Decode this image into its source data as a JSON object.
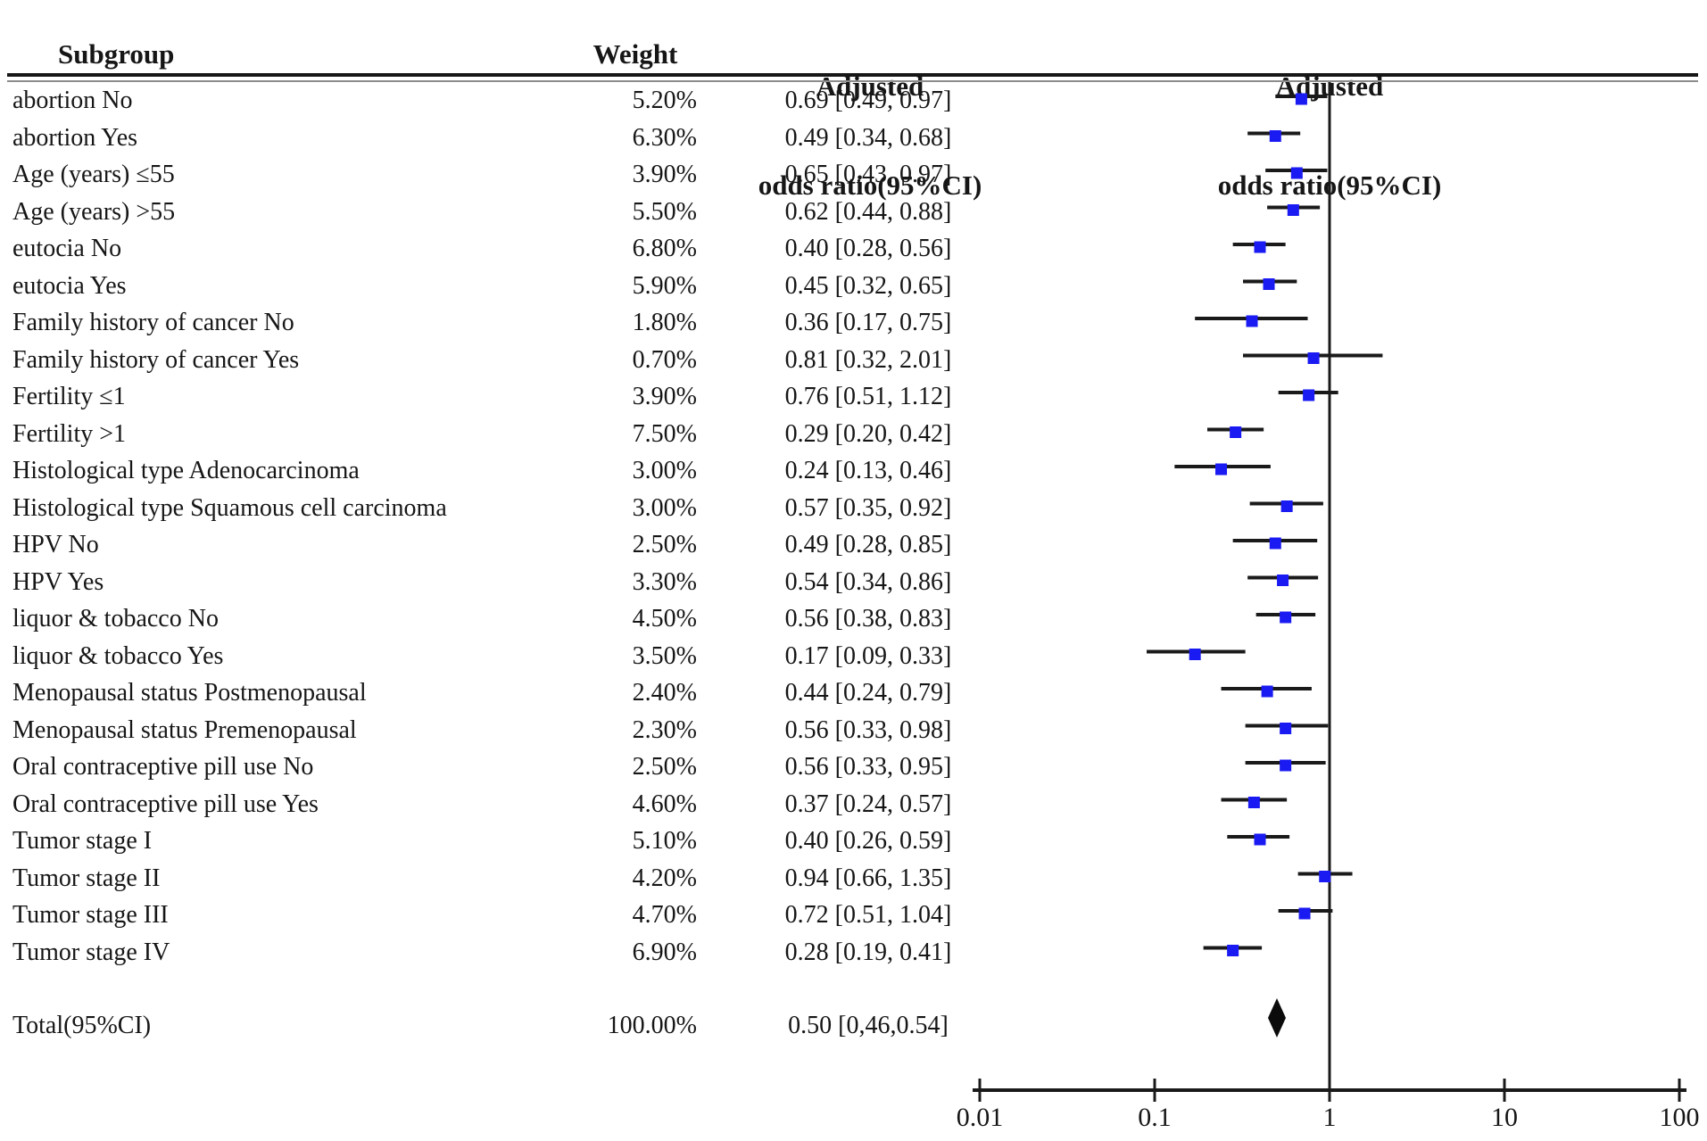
{
  "headers": {
    "subgroup": "Subgroup",
    "weight": "Weight",
    "or_col_line1": "Adjusted",
    "or_col_line2": "odds ratio(95%CI)",
    "plot_col_line1": "Adjusted",
    "plot_col_line2": "odds ratio(95%CI)"
  },
  "chart_data": {
    "type": "forest",
    "x_scale": "log10",
    "x_axis": {
      "ticks": [
        0.01,
        0.1,
        1,
        10,
        100
      ],
      "tick_labels": [
        "0.01",
        "0.1",
        "1",
        "10",
        "100"
      ],
      "reference_line": 1,
      "xlim": [
        0.01,
        100
      ]
    },
    "columns": [
      "Subgroup",
      "Weight",
      "Adjusted odds ratio(95%CI)"
    ],
    "marker_color": "#1a1af2",
    "line_color": "#1a1a1a",
    "rows": [
      {
        "subgroup": "abortion No",
        "weight": "5.20%",
        "or_text": "0.69 [0.49, 0.97]",
        "or": 0.69,
        "lo": 0.49,
        "hi": 0.97
      },
      {
        "subgroup": "abortion Yes",
        "weight": "6.30%",
        "or_text": "0.49 [0.34, 0.68]",
        "or": 0.49,
        "lo": 0.34,
        "hi": 0.68
      },
      {
        "subgroup": "Age (years) ≤55",
        "weight": "3.90%",
        "or_text": "0.65 [0.43, 0.97]",
        "or": 0.65,
        "lo": 0.43,
        "hi": 0.97
      },
      {
        "subgroup": "Age (years) >55",
        "weight": "5.50%",
        "or_text": "0.62 [0.44, 0.88]",
        "or": 0.62,
        "lo": 0.44,
        "hi": 0.88
      },
      {
        "subgroup": "eutocia No",
        "weight": "6.80%",
        "or_text": "0.40 [0.28, 0.56]",
        "or": 0.4,
        "lo": 0.28,
        "hi": 0.56
      },
      {
        "subgroup": "eutocia Yes",
        "weight": "5.90%",
        "or_text": "0.45 [0.32, 0.65]",
        "or": 0.45,
        "lo": 0.32,
        "hi": 0.65
      },
      {
        "subgroup": "Family history of cancer No",
        "weight": "1.80%",
        "or_text": "0.36 [0.17, 0.75]",
        "or": 0.36,
        "lo": 0.17,
        "hi": 0.75
      },
      {
        "subgroup": "Family history of cancer Yes",
        "weight": "0.70%",
        "or_text": "0.81 [0.32, 2.01]",
        "or": 0.81,
        "lo": 0.32,
        "hi": 2.01
      },
      {
        "subgroup": "Fertility ≤1",
        "weight": "3.90%",
        "or_text": "0.76 [0.51, 1.12]",
        "or": 0.76,
        "lo": 0.51,
        "hi": 1.12
      },
      {
        "subgroup": "Fertility >1",
        "weight": "7.50%",
        "or_text": "0.29 [0.20, 0.42]",
        "or": 0.29,
        "lo": 0.2,
        "hi": 0.42
      },
      {
        "subgroup": "Histological type Adenocarcinoma",
        "weight": "3.00%",
        "or_text": "0.24 [0.13, 0.46]",
        "or": 0.24,
        "lo": 0.13,
        "hi": 0.46
      },
      {
        "subgroup": "Histological type Squamous cell carcinoma",
        "weight": "3.00%",
        "or_text": "0.57 [0.35, 0.92]",
        "or": 0.57,
        "lo": 0.35,
        "hi": 0.92
      },
      {
        "subgroup": "HPV No",
        "weight": "2.50%",
        "or_text": "0.49 [0.28, 0.85]",
        "or": 0.49,
        "lo": 0.28,
        "hi": 0.85
      },
      {
        "subgroup": "HPV Yes",
        "weight": "3.30%",
        "or_text": "0.54 [0.34, 0.86]",
        "or": 0.54,
        "lo": 0.34,
        "hi": 0.86
      },
      {
        "subgroup": "liquor & tobacco No",
        "weight": "4.50%",
        "or_text": "0.56 [0.38, 0.83]",
        "or": 0.56,
        "lo": 0.38,
        "hi": 0.83
      },
      {
        "subgroup": "liquor & tobacco Yes",
        "weight": "3.50%",
        "or_text": "0.17 [0.09, 0.33]",
        "or": 0.17,
        "lo": 0.09,
        "hi": 0.33
      },
      {
        "subgroup": "Menopausal status Postmenopausal",
        "weight": "2.40%",
        "or_text": "0.44 [0.24, 0.79]",
        "or": 0.44,
        "lo": 0.24,
        "hi": 0.79
      },
      {
        "subgroup": "Menopausal status Premenopausal",
        "weight": "2.30%",
        "or_text": "0.56 [0.33, 0.98]",
        "or": 0.56,
        "lo": 0.33,
        "hi": 0.98
      },
      {
        "subgroup": "Oral contraceptive pill use No",
        "weight": "2.50%",
        "or_text": "0.56 [0.33, 0.95]",
        "or": 0.56,
        "lo": 0.33,
        "hi": 0.95
      },
      {
        "subgroup": "Oral contraceptive pill use Yes",
        "weight": "4.60%",
        "or_text": "0.37 [0.24, 0.57]",
        "or": 0.37,
        "lo": 0.24,
        "hi": 0.57
      },
      {
        "subgroup": "Tumor stage I",
        "weight": "5.10%",
        "or_text": "0.40 [0.26, 0.59]",
        "or": 0.4,
        "lo": 0.26,
        "hi": 0.59
      },
      {
        "subgroup": "Tumor stage II",
        "weight": "4.20%",
        "or_text": "0.94 [0.66, 1.35]",
        "or": 0.94,
        "lo": 0.66,
        "hi": 1.35
      },
      {
        "subgroup": "Tumor stage III",
        "weight": "4.70%",
        "or_text": "0.72 [0.51, 1.04]",
        "or": 0.72,
        "lo": 0.51,
        "hi": 1.04
      },
      {
        "subgroup": "Tumor stage IV",
        "weight": "6.90%",
        "or_text": "0.28 [0.19, 0.41]",
        "or": 0.28,
        "lo": 0.19,
        "hi": 0.41
      }
    ],
    "total": {
      "subgroup": "Total(95%CI)",
      "weight": "100.00%",
      "or_text": "0.50 [0,46,0.54]",
      "or": 0.5,
      "lo": 0.46,
      "hi": 0.54
    }
  }
}
